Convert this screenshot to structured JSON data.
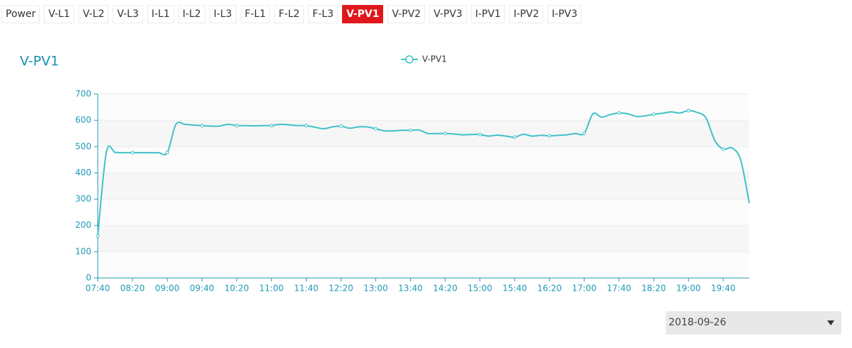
{
  "tabs": [
    {
      "label": "Power"
    },
    {
      "label": "V-L1"
    },
    {
      "label": "V-L2"
    },
    {
      "label": "V-L3"
    },
    {
      "label": "I-L1"
    },
    {
      "label": "I-L2"
    },
    {
      "label": "I-L3"
    },
    {
      "label": "F-L1"
    },
    {
      "label": "F-L2"
    },
    {
      "label": "F-L3"
    },
    {
      "label": "V-PV1",
      "active": true
    },
    {
      "label": "V-PV2"
    },
    {
      "label": "V-PV3"
    },
    {
      "label": "I-PV1"
    },
    {
      "label": "I-PV2"
    },
    {
      "label": "I-PV3"
    }
  ],
  "chart_data": {
    "type": "line",
    "title": "V-PV1",
    "categories": [
      "07:40",
      null,
      null,
      null,
      "08:20",
      null,
      null,
      null,
      "09:00",
      null,
      null,
      null,
      "09:40",
      null,
      null,
      null,
      "10:20",
      null,
      null,
      null,
      "11:00",
      null,
      null,
      null,
      "11:40",
      null,
      null,
      null,
      "12:20",
      null,
      null,
      null,
      "13:00",
      null,
      null,
      null,
      "13:40",
      null,
      null,
      null,
      "14:20",
      null,
      null,
      null,
      "15:00",
      null,
      null,
      null,
      "15:40",
      null,
      null,
      null,
      "16:20",
      null,
      null,
      null,
      "17:00",
      null,
      null,
      null,
      "17:40",
      null,
      null,
      null,
      "18:20",
      null,
      null,
      null,
      "19:00",
      null,
      null,
      null,
      "19:40",
      null,
      null,
      null
    ],
    "series": [
      {
        "name": "V-PV1",
        "color": "#3fc1c9",
        "values": [
          160,
          480,
          478,
          477,
          477,
          477,
          477,
          477,
          477,
          585,
          585,
          582,
          580,
          578,
          578,
          585,
          580,
          580,
          579,
          580,
          580,
          585,
          583,
          580,
          580,
          574,
          568,
          575,
          578,
          570,
          575,
          575,
          568,
          560,
          560,
          562,
          562,
          563,
          550,
          550,
          550,
          548,
          545,
          546,
          546,
          540,
          544,
          540,
          536,
          547,
          540,
          543,
          541,
          543,
          545,
          550,
          550,
          625,
          612,
          622,
          628,
          625,
          615,
          617,
          623,
          627,
          632,
          628,
          637,
          630,
          610,
          525,
          490,
          495,
          450,
          285
        ]
      }
    ],
    "ylim": [
      0,
      700
    ],
    "yticks": [
      0,
      100,
      200,
      300,
      400,
      500,
      600,
      700
    ],
    "grid": true
  },
  "date_select": {
    "value": "2018-09-26"
  }
}
